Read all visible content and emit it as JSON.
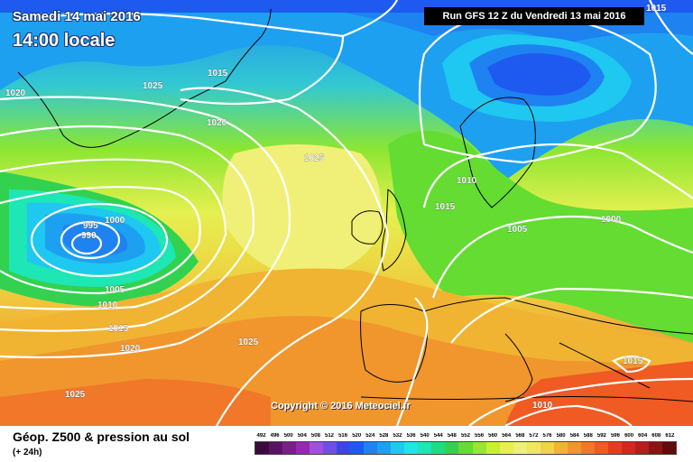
{
  "header": {
    "date": "Samedi 14 mai 2016",
    "time": "14:00 locale",
    "run": "Run GFS 12 Z du Vendredi 13 mai 2016"
  },
  "copyright": "Copyright © 2016 Meteociel.fr",
  "footer": {
    "product": "Géop. Z500 & pression au sol",
    "lead": "(+ 24h)"
  },
  "isobars": [
    {
      "label": "1020",
      "tag": "isobar-1020-nw"
    },
    {
      "label": "1025",
      "tag": "isobar-1025-greenland"
    },
    {
      "label": "1015",
      "tag": "isobar-1015-north"
    },
    {
      "label": "1020",
      "tag": "isobar-1020-north"
    },
    {
      "label": "1025",
      "tag": "isobar-1025-atlantic"
    },
    {
      "label": "995",
      "tag": "isobar-995"
    },
    {
      "label": "990",
      "tag": "isobar-990"
    },
    {
      "label": "1000",
      "tag": "isobar-1000-low"
    },
    {
      "label": "1005",
      "tag": "isobar-1005-west"
    },
    {
      "label": "1010",
      "tag": "isobar-1010-west"
    },
    {
      "label": "1015",
      "tag": "isobar-1015-west"
    },
    {
      "label": "1020",
      "tag": "isobar-1020-west"
    },
    {
      "label": "1025",
      "tag": "isobar-1025-sw"
    },
    {
      "label": "1025",
      "tag": "isobar-1025-south"
    },
    {
      "label": "1010",
      "tag": "isobar-1010-scandinavia"
    },
    {
      "label": "1015",
      "tag": "isobar-1015-north-sea"
    },
    {
      "label": "1005",
      "tag": "isobar-1005-germany"
    },
    {
      "label": "1000",
      "tag": "isobar-1000-east"
    },
    {
      "label": "1015",
      "tag": "isobar-1015-east"
    },
    {
      "label": "1010",
      "tag": "isobar-1010-mediterranean"
    },
    {
      "label": "1015",
      "tag": "isobar-1015-top-right"
    }
  ],
  "legend": {
    "labels": [
      "492",
      "496",
      "500",
      "504",
      "508",
      "512",
      "516",
      "520",
      "524",
      "528",
      "532",
      "536",
      "540",
      "544",
      "548",
      "552",
      "556",
      "560",
      "564",
      "568",
      "572",
      "576",
      "580",
      "584",
      "588",
      "592",
      "596",
      "600",
      "604",
      "608",
      "612"
    ],
    "colors": [
      "#3c0a3c",
      "#5a1464",
      "#7a1e8c",
      "#9628b4",
      "#a050dc",
      "#6e50e6",
      "#3c46e6",
      "#1e5af0",
      "#1e82f0",
      "#1ea0f0",
      "#1ec8f0",
      "#1ee6e6",
      "#1ee6b4",
      "#1edc82",
      "#32d250",
      "#64dc32",
      "#96e632",
      "#c8f032",
      "#e6f050",
      "#f0f078",
      "#f0e664",
      "#f0d24b",
      "#f0b432",
      "#f0962d",
      "#f07828",
      "#f05a23",
      "#e63c1e",
      "#d2281e",
      "#b41e1e",
      "#8c1414",
      "#640a0a"
    ]
  }
}
